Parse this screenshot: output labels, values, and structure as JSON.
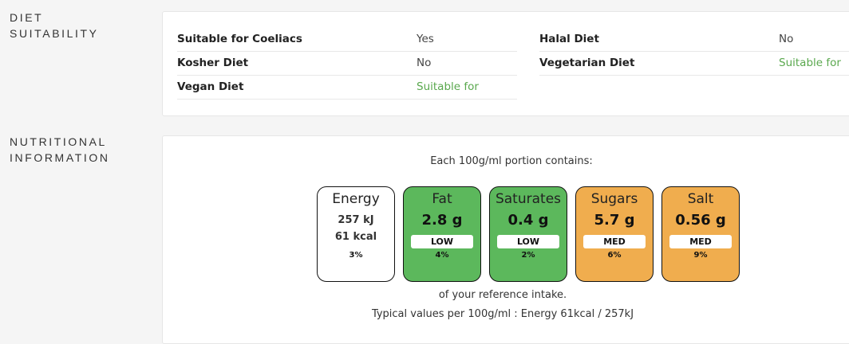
{
  "diet": {
    "heading_line1": "DIET",
    "heading_line2": "SUITABILITY",
    "rows": [
      {
        "key": "Suitable for Coeliacs",
        "value": "Yes"
      },
      {
        "key": "Halal Diet",
        "value": "No"
      },
      {
        "key": "Kosher Diet",
        "value": "No"
      },
      {
        "key": "Vegetarian Diet",
        "value": "Suitable for"
      },
      {
        "key": "Vegan Diet",
        "value": "Suitable for"
      }
    ]
  },
  "nutrition": {
    "heading_line1": "NUTRITIONAL",
    "heading_line2": "INFORMATION",
    "intro": "Each 100g/ml portion contains:",
    "reference_note": "of your reference intake.",
    "typical_values": "Typical values per 100g/ml : Energy 61kcal / 257kJ",
    "energy": {
      "name": "Energy",
      "kj": "257 kJ",
      "kcal": "61 kcal",
      "percent": "3%"
    },
    "tiles": [
      {
        "name": "Fat",
        "value": "2.8 g",
        "level": "LOW",
        "percent": "4%",
        "color": "#5cb85c"
      },
      {
        "name": "Saturates",
        "value": "0.4 g",
        "level": "LOW",
        "percent": "2%",
        "color": "#5cb85c"
      },
      {
        "name": "Sugars",
        "value": "5.7 g",
        "level": "MED",
        "percent": "6%",
        "color": "#f0ad4e"
      },
      {
        "name": "Salt",
        "value": "0.56 g",
        "level": "MED",
        "percent": "9%",
        "color": "#f0ad4e"
      }
    ]
  },
  "colors": {
    "green_text": "#5aa84e",
    "low": "#5cb85c",
    "med": "#f0ad4e"
  }
}
